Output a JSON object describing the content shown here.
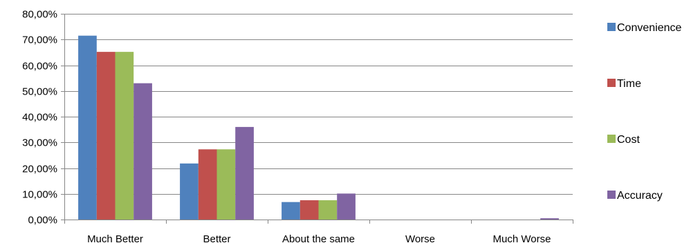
{
  "chart_data": {
    "type": "bar",
    "categories": [
      "Much Better",
      "Better",
      "About the same",
      "Worse",
      "Much Worse"
    ],
    "series": [
      {
        "name": "Convenience",
        "color": "#4f81bd",
        "values": [
          71.5,
          21.8,
          6.8,
          0,
          0
        ]
      },
      {
        "name": "Time",
        "color": "#c0504d",
        "values": [
          65.2,
          27.3,
          7.5,
          0,
          0
        ]
      },
      {
        "name": "Cost",
        "color": "#9bbb59",
        "values": [
          65.2,
          27.3,
          7.5,
          0,
          0
        ]
      },
      {
        "name": "Accuracy",
        "color": "#8064a2",
        "values": [
          53.0,
          36.0,
          10.1,
          0,
          0.5
        ]
      }
    ],
    "y_ticks": [
      "0,00%",
      "10,00%",
      "20,00%",
      "30,00%",
      "40,00%",
      "50,00%",
      "60,00%",
      "70,00%",
      "80,00%"
    ],
    "ylim": [
      0,
      80
    ],
    "y_grid": true,
    "legend_position": "right"
  }
}
